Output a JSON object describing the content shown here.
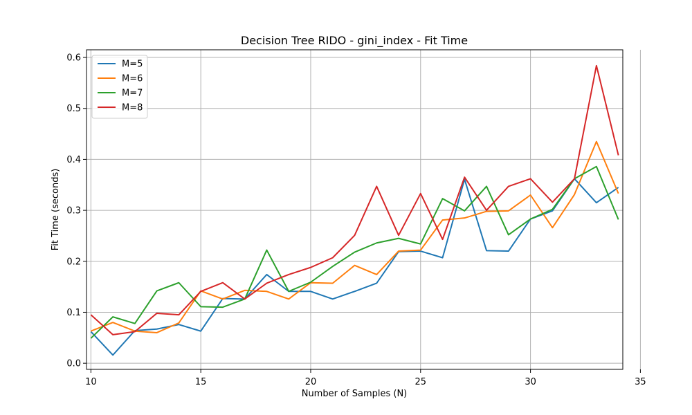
{
  "chart_data": {
    "type": "line",
    "title": "Decision Tree RIDO - gini_index - Fit Time",
    "xlabel": "Number of Samples (N)",
    "ylabel": "Fit Time (seconds)",
    "xlim": [
      9.8,
      34.2
    ],
    "ylim": [
      -0.012,
      0.615
    ],
    "xticks": [
      10,
      15,
      20,
      25,
      30,
      35
    ],
    "yticks": [
      0.0,
      0.1,
      0.2,
      0.3,
      0.4,
      0.5,
      0.6
    ],
    "grid": true,
    "legend_position": "top-left",
    "x": [
      10,
      11,
      12,
      13,
      14,
      15,
      16,
      17,
      18,
      19,
      20,
      21,
      22,
      23,
      24,
      25,
      26,
      27,
      28,
      29,
      30,
      31,
      32,
      33,
      34
    ],
    "series": [
      {
        "name": "M=5",
        "color": "#1f77b4",
        "values": [
          0.062,
          0.016,
          0.064,
          0.067,
          0.076,
          0.063,
          0.127,
          0.126,
          0.174,
          0.141,
          0.141,
          0.126,
          0.141,
          0.157,
          0.219,
          0.22,
          0.207,
          0.361,
          0.221,
          0.22,
          0.283,
          0.299,
          0.362,
          0.315,
          0.345
        ]
      },
      {
        "name": "M=6",
        "color": "#ff7f0e",
        "values": [
          0.063,
          0.08,
          0.063,
          0.06,
          0.079,
          0.142,
          0.126,
          0.143,
          0.141,
          0.126,
          0.158,
          0.157,
          0.192,
          0.174,
          0.22,
          0.222,
          0.281,
          0.285,
          0.298,
          0.299,
          0.33,
          0.266,
          0.331,
          0.435,
          0.333
        ]
      },
      {
        "name": "M=7",
        "color": "#2ca02c",
        "values": [
          0.049,
          0.091,
          0.078,
          0.142,
          0.158,
          0.111,
          0.11,
          0.126,
          0.222,
          0.141,
          0.159,
          0.19,
          0.218,
          0.236,
          0.245,
          0.234,
          0.323,
          0.299,
          0.347,
          0.252,
          0.283,
          0.302,
          0.362,
          0.386,
          0.282
        ]
      },
      {
        "name": "M=8",
        "color": "#d62728",
        "values": [
          0.095,
          0.056,
          0.062,
          0.098,
          0.095,
          0.141,
          0.158,
          0.126,
          0.157,
          0.174,
          0.188,
          0.207,
          0.251,
          0.347,
          0.251,
          0.333,
          0.243,
          0.365,
          0.3,
          0.347,
          0.362,
          0.316,
          0.362,
          0.584,
          0.408
        ]
      }
    ]
  }
}
